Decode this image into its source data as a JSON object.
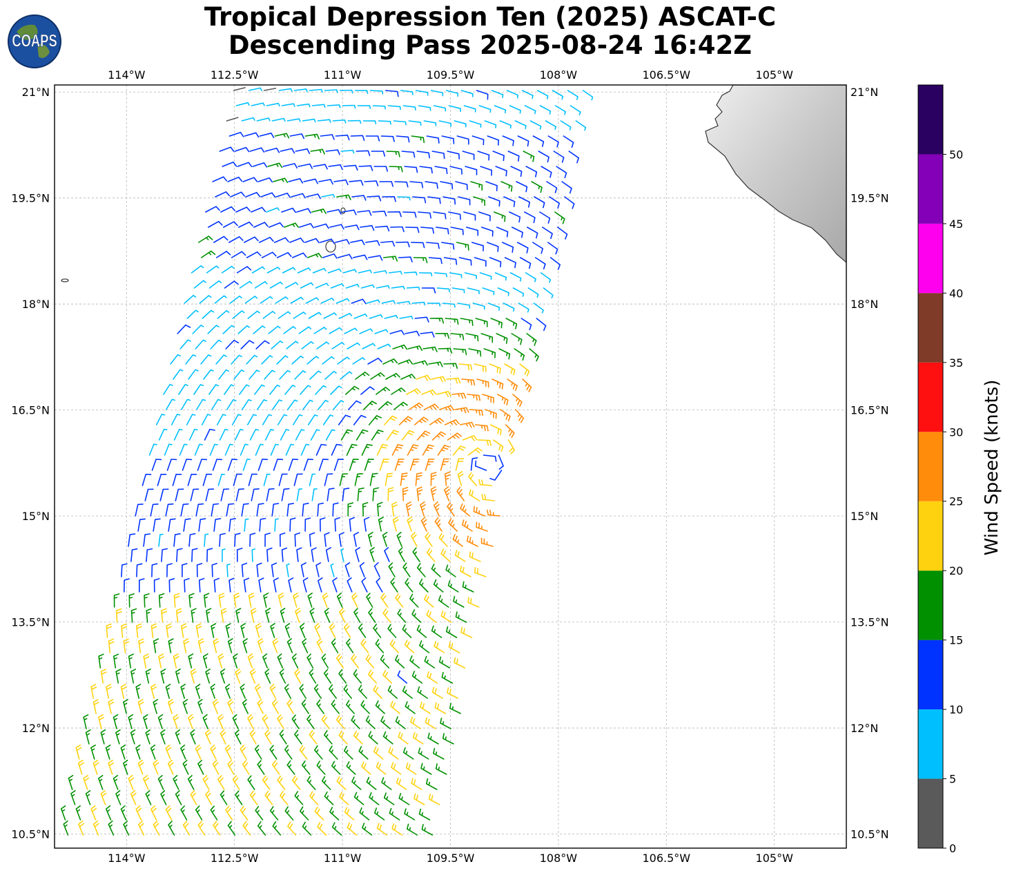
{
  "title": {
    "line1": "Tropical Depression Ten (2025) ASCAT-C",
    "line2": "Descending Pass 2025-08-24 16:42Z"
  },
  "logo": {
    "text": "COAPS",
    "icon": "globe-logo-icon"
  },
  "map": {
    "projection": "plate-carree",
    "lon_range": [
      -115.0,
      -104.0
    ],
    "lat_range": [
      10.3,
      21.1
    ],
    "lon_ticks": [
      "114°W",
      "112.5°W",
      "111°W",
      "109.5°W",
      "108°W",
      "106.5°W",
      "105°W"
    ],
    "lon_tick_values": [
      -114,
      -112.5,
      -111,
      -109.5,
      -108,
      -106.5,
      -105
    ],
    "lat_ticks": [
      "21°N",
      "19.5°N",
      "18°N",
      "16.5°N",
      "15°N",
      "13.5°N",
      "12°N",
      "10.5°N"
    ],
    "lat_tick_values": [
      21,
      19.5,
      18,
      16.5,
      15,
      13.5,
      12,
      10.5
    ],
    "gridlines": true,
    "land_color": "#d9d9d9",
    "coast_color": "#333333"
  },
  "wind_barbs": {
    "storm_center": [
      -109.0,
      15.7
    ],
    "swath_corners": [
      [
        -112.55,
        21.1
      ],
      [
        -107.55,
        21.1
      ],
      [
        -109.7,
        10.3
      ],
      [
        -115.0,
        10.3
      ]
    ]
  },
  "colorbar": {
    "label": "Wind Speed (knots)",
    "ticks": [
      "0",
      "5",
      "10",
      "15",
      "20",
      "25",
      "30",
      "35",
      "40",
      "45",
      "50"
    ],
    "tick_values": [
      0,
      5,
      10,
      15,
      20,
      25,
      30,
      35,
      40,
      45,
      50
    ],
    "max": 55,
    "bins": [
      {
        "from": 0,
        "to": 5,
        "color": "#5a5a5a"
      },
      {
        "from": 5,
        "to": 10,
        "color": "#00bfff"
      },
      {
        "from": 10,
        "to": 15,
        "color": "#0033ff"
      },
      {
        "from": 15,
        "to": 20,
        "color": "#009000"
      },
      {
        "from": 20,
        "to": 25,
        "color": "#ffd210"
      },
      {
        "from": 25,
        "to": 30,
        "color": "#ff8c0a"
      },
      {
        "from": 30,
        "to": 35,
        "color": "#ff1010"
      },
      {
        "from": 35,
        "to": 40,
        "color": "#7f3b28"
      },
      {
        "from": 40,
        "to": 45,
        "color": "#ff00ee"
      },
      {
        "from": 45,
        "to": 50,
        "color": "#8300b8"
      },
      {
        "from": 50,
        "to": 55,
        "color": "#2a0060"
      }
    ]
  }
}
